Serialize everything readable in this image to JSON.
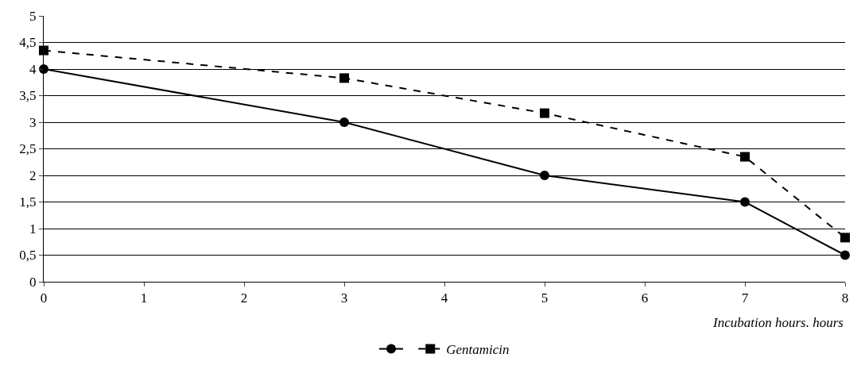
{
  "chart_data": {
    "type": "line",
    "xlabel": "Incubation hours. hours",
    "x": [
      0,
      3,
      5,
      7,
      8
    ],
    "series": [
      {
        "color": "#000000",
        "values": [
          4,
          3,
          2,
          1.5,
          0.5
        ],
        "marker": "circle",
        "line_style": "solid"
      },
      {
        "name": "Gentamicin",
        "color": "#000000",
        "values": [
          4.35,
          3.83,
          3.17,
          2.35,
          0.83
        ],
        "marker": "square",
        "line_style": "dashed"
      }
    ],
    "xlim": [
      0,
      8
    ],
    "xticks": [
      0,
      1,
      2,
      3,
      4,
      5,
      6,
      7,
      8
    ],
    "ylim": [
      0,
      5
    ],
    "yticks": [
      0,
      {
        "value": 0.5,
        "label": "0,5"
      },
      1,
      {
        "value": 1.5,
        "label": "1,5"
      },
      2,
      {
        "value": 2.5,
        "label": "2,5"
      },
      3,
      {
        "value": 3.5,
        "label": "3,5"
      },
      4,
      {
        "value": 4.5,
        "label": "4,5"
      },
      5
    ],
    "grid": "y",
    "legend": "bottom"
  }
}
